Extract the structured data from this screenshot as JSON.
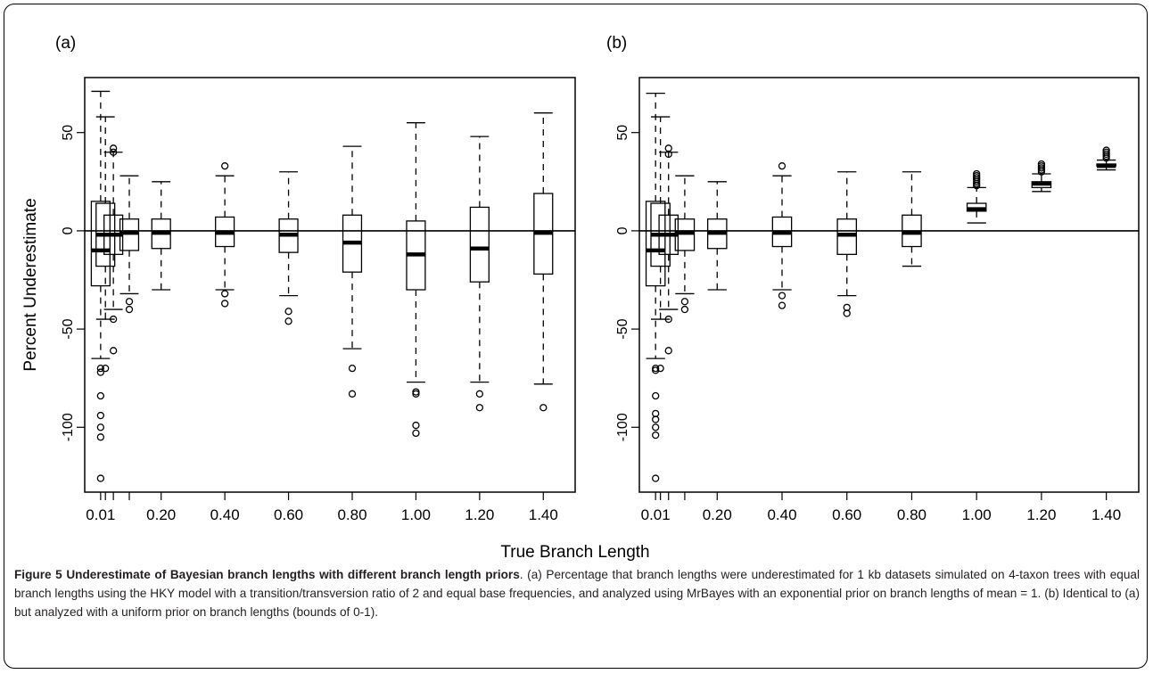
{
  "x_axis_title": "True Branch Length",
  "caption": {
    "bold": "Figure 5 Underestimate of Bayesian branch lengths with different branch length priors",
    "text": ". (a) Percentage that branch lengths were underestimated for 1 kb datasets simulated on 4-taxon trees with equal branch lengths using the HKY model with a transition/transversion ratio of 2 and equal base frequencies, and analyzed using MrBayes with an exponential prior on branch lengths of mean = 1. (b) Identical to (a) but analyzed with a uniform prior on branch lengths (bounds of 0-1)."
  },
  "chart_data": [
    {
      "type": "box",
      "panel_label": "(a)",
      "ylabel": "Percent Underestimate",
      "xlabel": "True Branch Length",
      "ylim": [
        -133,
        78
      ],
      "xlim": [
        -0.04,
        1.5
      ],
      "yticks": [
        -100,
        -50,
        0,
        50
      ],
      "xtick_labels": [
        "0.01",
        "0.20",
        "0.40",
        "0.60",
        "0.80",
        "1.00",
        "1.20",
        "1.40"
      ],
      "xtick_positions": [
        0.01,
        0.2,
        0.4,
        0.6,
        0.8,
        1.0,
        1.2,
        1.4
      ],
      "reference_line_y": 0,
      "boxes": [
        {
          "x": 0.01,
          "whisker_low": -65,
          "q1": -28,
          "median": -10,
          "q3": 15,
          "whisker_high": 71,
          "outliers": [
            -70,
            -72,
            -84,
            -94,
            -100,
            -105,
            -126
          ]
        },
        {
          "x": 0.025,
          "whisker_low": -45,
          "q1": -18,
          "median": -2,
          "q3": 14,
          "whisker_high": 58,
          "outliers": [
            -70
          ]
        },
        {
          "x": 0.05,
          "whisker_low": -40,
          "q1": -12,
          "median": -2,
          "q3": 8,
          "whisker_high": 40,
          "outliers": [
            42,
            40,
            -45,
            -61
          ]
        },
        {
          "x": 0.1,
          "whisker_low": -32,
          "q1": -10,
          "median": -1,
          "q3": 6,
          "whisker_high": 28,
          "outliers": [
            -36,
            -40
          ]
        },
        {
          "x": 0.2,
          "whisker_low": -30,
          "q1": -9,
          "median": -1,
          "q3": 6,
          "whisker_high": 25,
          "outliers": []
        },
        {
          "x": 0.4,
          "whisker_low": -30,
          "q1": -8,
          "median": -1,
          "q3": 7,
          "whisker_high": 28,
          "outliers": [
            33,
            -32,
            -37
          ]
        },
        {
          "x": 0.6,
          "whisker_low": -33,
          "q1": -11,
          "median": -2,
          "q3": 6,
          "whisker_high": 30,
          "outliers": [
            -41,
            -46
          ]
        },
        {
          "x": 0.8,
          "whisker_low": -60,
          "q1": -21,
          "median": -6,
          "q3": 8,
          "whisker_high": 43,
          "outliers": [
            -70,
            -83
          ]
        },
        {
          "x": 1.0,
          "whisker_low": -77,
          "q1": -30,
          "median": -12,
          "q3": 5,
          "whisker_high": 55,
          "outliers": [
            -82,
            -83,
            -99,
            -103
          ]
        },
        {
          "x": 1.2,
          "whisker_low": -77,
          "q1": -26,
          "median": -9,
          "q3": 12,
          "whisker_high": 48,
          "outliers": [
            -83,
            -90
          ]
        },
        {
          "x": 1.4,
          "whisker_low": -78,
          "q1": -22,
          "median": -1,
          "q3": 19,
          "whisker_high": 60,
          "outliers": [
            -90
          ]
        }
      ]
    },
    {
      "type": "box",
      "panel_label": "(b)",
      "ylabel": "",
      "xlabel": "True Branch Length",
      "ylim": [
        -133,
        78
      ],
      "xlim": [
        -0.04,
        1.5
      ],
      "yticks": [
        -100,
        -50,
        0,
        50
      ],
      "xtick_labels": [
        "0.01",
        "0.20",
        "0.40",
        "0.60",
        "0.80",
        "1.00",
        "1.20",
        "1.40"
      ],
      "xtick_positions": [
        0.01,
        0.2,
        0.4,
        0.6,
        0.8,
        1.0,
        1.2,
        1.4
      ],
      "reference_line_y": 0,
      "boxes": [
        {
          "x": 0.01,
          "whisker_low": -65,
          "q1": -28,
          "median": -10,
          "q3": 15,
          "whisker_high": 70,
          "outliers": [
            -70,
            -71,
            -84,
            -93,
            -96,
            -100,
            -104,
            -126
          ]
        },
        {
          "x": 0.025,
          "whisker_low": -45,
          "q1": -18,
          "median": -2,
          "q3": 14,
          "whisker_high": 58,
          "outliers": [
            -70
          ]
        },
        {
          "x": 0.05,
          "whisker_low": -40,
          "q1": -12,
          "median": -2,
          "q3": 8,
          "whisker_high": 40,
          "outliers": [
            42,
            39,
            -45,
            -61
          ]
        },
        {
          "x": 0.1,
          "whisker_low": -32,
          "q1": -10,
          "median": -1,
          "q3": 6,
          "whisker_high": 28,
          "outliers": [
            -36,
            -40
          ]
        },
        {
          "x": 0.2,
          "whisker_low": -30,
          "q1": -9,
          "median": -1,
          "q3": 6,
          "whisker_high": 25,
          "outliers": []
        },
        {
          "x": 0.4,
          "whisker_low": -30,
          "q1": -8,
          "median": -1,
          "q3": 7,
          "whisker_high": 28,
          "outliers": [
            33,
            -33,
            -38
          ]
        },
        {
          "x": 0.6,
          "whisker_low": -33,
          "q1": -12,
          "median": -2,
          "q3": 6,
          "whisker_high": 30,
          "outliers": [
            -39,
            -42
          ]
        },
        {
          "x": 0.8,
          "whisker_low": -18,
          "q1": -8,
          "median": -1,
          "q3": 8,
          "whisker_high": 30,
          "outliers": []
        },
        {
          "x": 1.0,
          "whisker_low": 4,
          "q1": 10,
          "median": 11,
          "q3": 14,
          "whisker_high": 22,
          "outliers": [
            23,
            24,
            25,
            26,
            27,
            28,
            29
          ]
        },
        {
          "x": 1.2,
          "whisker_low": 20,
          "q1": 22,
          "median": 24,
          "q3": 25,
          "whisker_high": 29,
          "outliers": [
            30,
            31,
            32,
            33,
            34
          ]
        },
        {
          "x": 1.4,
          "whisker_low": 31,
          "q1": 33,
          "median": 33,
          "q3": 34,
          "whisker_high": 36,
          "outliers": [
            37,
            38,
            39,
            40,
            41
          ]
        }
      ]
    }
  ]
}
